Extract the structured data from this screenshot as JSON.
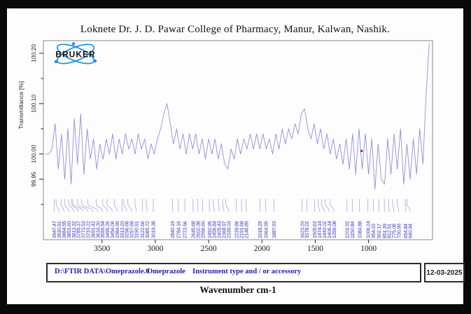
{
  "page": {
    "title": "Loknete Dr. J. D. Pawar College of Pharmacy, Manur, Kalwan, Nashik."
  },
  "branding": {
    "logo_text": "BRUKER",
    "logo_color": "#1e8fe0",
    "logo_text_color": "#111111"
  },
  "footer": {
    "file_path": "D:\\FTIR DATA\\Omeprazole.0",
    "sample_name": "Omeprazole",
    "instrument_text": "Instrument type and / or accessory",
    "date": "12-03-2025",
    "text_color": "#2121bb"
  },
  "chart_data": {
    "type": "line",
    "title": "",
    "xlabel": "Wavenumber cm-1",
    "ylabel": "Transmittance [%]",
    "xlim": [
      4050,
      400
    ],
    "ylim": [
      99.83,
      100.225
    ],
    "grid": false,
    "legend": "none",
    "x_ticks": [
      3500,
      3000,
      2500,
      2000,
      1500,
      1000
    ],
    "y_ticks": [
      {
        "v": 100.2,
        "label": "100.20"
      },
      {
        "v": 100.15,
        "label": ""
      },
      {
        "v": 100.1,
        "label": "100.10"
      },
      {
        "v": 100.05,
        "label": ""
      },
      {
        "v": 100.0,
        "label": "100.00"
      },
      {
        "v": 99.95,
        "label": "99.95"
      },
      {
        "v": 99.9,
        "label": ""
      }
    ],
    "line_color": "#8f8fe0",
    "peak_label_color": "#3a3ac8",
    "peaks": [
      "3947.47",
      "3930.91",
      "3884.55",
      "3851.60",
      "3813.32",
      "3785.37",
      "3773.53",
      "3733.22",
      "3691.42",
      "3634.30",
      "3555.94",
      "3495.26",
      "3454.06",
      "3384.99",
      "3313.20",
      "3296.68",
      "3257.68",
      "3190.91",
      "3122.66",
      "3085.72",
      "3019.38",
      "2840.19",
      "2784.16",
      "2723.56",
      "2645.68",
      "2602.38",
      "2556.60",
      "2492.95",
      "2456.84",
      "2405.43",
      "2368.97",
      "2339.03",
      "2239.86",
      "2191.68",
      "2148.85",
      "2018.29",
      "1964.55",
      "1887.93",
      "1623.20",
      "1578.02",
      "1505.63",
      "1474.14",
      "1443.02",
      "1406.14",
      "1359.08",
      "1201.92",
      "1150.84",
      "1084.88",
      "1006.24",
      "954.03",
      "902.17",
      "851.39",
      "812.51",
      "775.08",
      "730.99",
      "654.84",
      "640.94"
    ],
    "marker": {
      "wavenumber": 1066,
      "transmittance": 100.0,
      "color": "#cc2222"
    },
    "series": [
      {
        "name": "Omeprazole",
        "x_start": 4030,
        "x_step": -30,
        "values": [
          100.0,
          100.0,
          100.01,
          100.06,
          99.97,
          100.04,
          99.95,
          100.05,
          99.94,
          100.07,
          99.98,
          100.08,
          99.96,
          100.05,
          99.99,
          100.03,
          99.97,
          100.02,
          99.99,
          100.03,
          100.0,
          100.04,
          99.99,
          100.03,
          100.0,
          100.04,
          100.01,
          100.03,
          100.0,
          100.04,
          100.01,
          100.03,
          99.99,
          100.02,
          100.0,
          100.03,
          100.05,
          100.08,
          100.1,
          100.06,
          100.02,
          100.05,
          100.01,
          100.04,
          100.0,
          100.04,
          100.01,
          100.04,
          100.0,
          100.03,
          99.99,
          100.03,
          100.0,
          100.03,
          99.99,
          100.02,
          99.98,
          99.97,
          100.01,
          99.99,
          100.03,
          100.0,
          100.03,
          100.01,
          100.04,
          100.01,
          100.04,
          100.01,
          100.04,
          100.01,
          100.03,
          100.0,
          100.04,
          100.01,
          100.05,
          100.02,
          100.05,
          100.03,
          100.06,
          100.04,
          100.08,
          100.09,
          100.05,
          100.03,
          100.06,
          100.02,
          100.05,
          100.01,
          100.04,
          100.0,
          100.03,
          99.99,
          100.02,
          99.98,
          100.03,
          99.97,
          100.04,
          99.96,
          100.05,
          99.97,
          100.04,
          99.96,
          100.03,
          99.93,
          100.02,
          99.95,
          99.94,
          100.03,
          99.96,
          100.04,
          99.97,
          100.05,
          99.94,
          100.02,
          99.95,
          100.03,
          99.96,
          100.05,
          99.98,
          100.12,
          100.22
        ]
      }
    ]
  }
}
